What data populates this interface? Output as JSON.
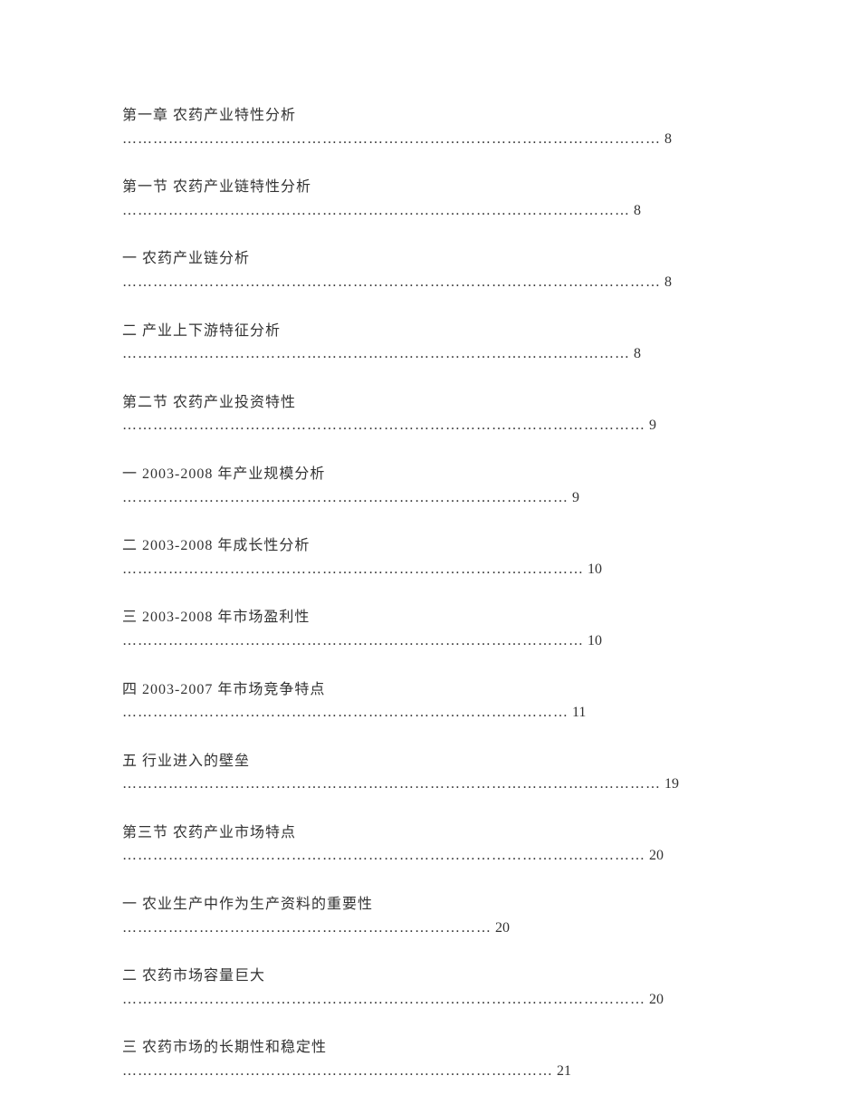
{
  "toc": {
    "entries": [
      {
        "title": "第一章 农药产业特性分析",
        "dots": "……………………………………………………………………………………………",
        "page": "8"
      },
      {
        "title": "第一节 农药产业链特性分析",
        "dots": "………………………………………………………………………………………",
        "page": "8"
      },
      {
        "title": "一 农药产业链分析",
        "dots": "……………………………………………………………………………………………",
        "page": "8"
      },
      {
        "title": "二 产业上下游特征分析",
        "dots": "………………………………………………………………………………………",
        "page": "8"
      },
      {
        "title": "第二节 农药产业投资特性",
        "dots": "…………………………………………………………………………………………",
        "page": "9"
      },
      {
        "title": "一 2003-2008 年产业规模分析",
        "dots": "……………………………………………………………………………",
        "page": "9",
        "titleSuffix": ""
      },
      {
        "title": "二 2003-2008 年成长性分析",
        "dots": "………………………………………………………………………………",
        "page": "10"
      },
      {
        "title": "三 2003-2008 年市场盈利性",
        "dots": "………………………………………………………………………………",
        "page": "10"
      },
      {
        "title": "四 2003-2007 年市场竞争特点",
        "dots": "……………………………………………………………………………",
        "page": "11",
        "titleSuffix": ""
      },
      {
        "title": "五 行业进入的壁垒",
        "dots": "……………………………………………………………………………………………",
        "page": "19"
      },
      {
        "title": "第三节 农药产业市场特点",
        "dots": "…………………………………………………………………………………………",
        "page": "20"
      },
      {
        "title": "一 农业生产中作为生产资料的重要性",
        "dots": "………………………………………………………………",
        "page": "20"
      },
      {
        "title": "二 农药市场容量巨大",
        "dots": "…………………………………………………………………………………………",
        "page": "20"
      },
      {
        "title": "三 农药市场的长期性和稳定性",
        "dots": "…………………………………………………………………………",
        "page": "21"
      }
    ]
  },
  "style": {
    "background_color": "#ffffff",
    "text_color": "#333333",
    "font_family": "SimSun",
    "title_fontsize": 16,
    "leader_fontsize": 16,
    "entry_spacing": 28
  }
}
